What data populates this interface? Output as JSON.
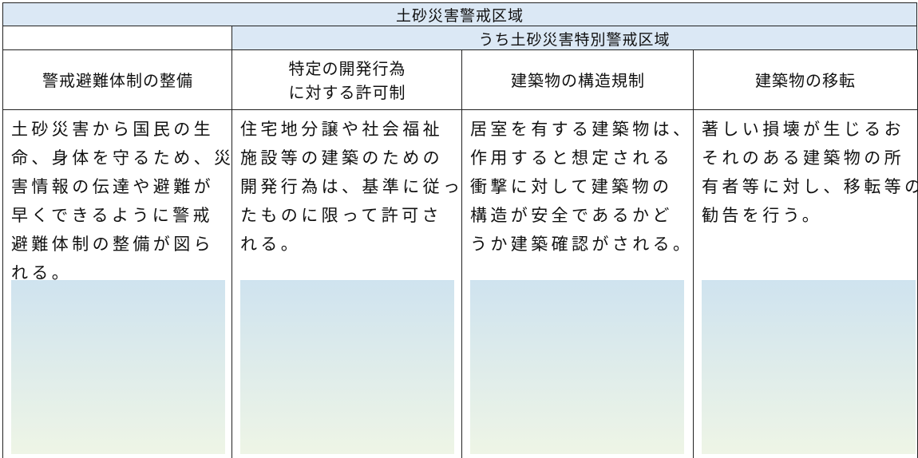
{
  "header": {
    "title": "土砂災害警戒区域",
    "subtitle": "うち土砂災害特別警戒区域"
  },
  "columns": [
    {
      "heading": [
        "警戒避難体制の整備"
      ],
      "text": [
        "土砂災害から国民の生",
        "命、身体を守るため、災",
        "害情報の伝達や避難が",
        "早くできるように警戒",
        "避難体制の整備が図ら",
        "れる。"
      ]
    },
    {
      "heading": [
        "特定の開発行為",
        "に対する許可制"
      ],
      "text": [
        "住宅地分譲や社会福祉",
        "施設等の建築のための",
        "開発行為は、基準に従っ",
        "たものに限って許可さ",
        "れる。"
      ]
    },
    {
      "heading": [
        "建築物の構造規制"
      ],
      "text": [
        "居室を有する建築物は、",
        "作用すると想定される",
        "衝撃に対して建築物の",
        "構造が安全であるかど",
        "うか建築確認がされる。"
      ]
    },
    {
      "heading": [
        "建築物の移転"
      ],
      "text": [
        "著しい損壊が生じるお",
        "それのある建築物の所",
        "有者等に対し、移転等の",
        "勧告を行う。"
      ]
    }
  ]
}
